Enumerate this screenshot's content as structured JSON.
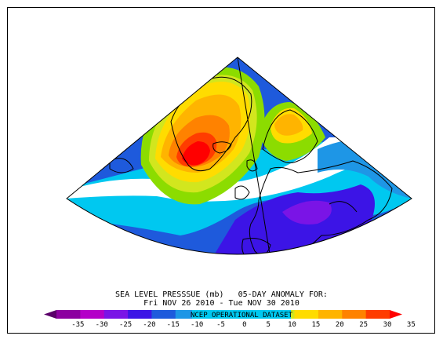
{
  "title_line1": "SEA LEVEL PRESSSUE (mb)   05-DAY ANOMALY FOR:",
  "title_line2": "Fri NOV 26 2010 - Tue NOV 30 2010",
  "dataset_label": "NCEP OPERATIONAL DATASET",
  "legend": {
    "levels": [
      "-35",
      "-30",
      "-25",
      "-20",
      "-15",
      "-10",
      "-5",
      "0",
      "5",
      "10",
      "15",
      "20",
      "25",
      "30",
      "35"
    ],
    "colors": [
      "#5a0069",
      "#8c00a0",
      "#b400c8",
      "#7a14e6",
      "#3c14e6",
      "#1e5adc",
      "#1e96e6",
      "#00c8f0",
      "#ffffff",
      "#8cdc00",
      "#d2e61e",
      "#ffdc00",
      "#ffb400",
      "#ff8200",
      "#ff3c00",
      "#ff0000"
    ]
  }
}
